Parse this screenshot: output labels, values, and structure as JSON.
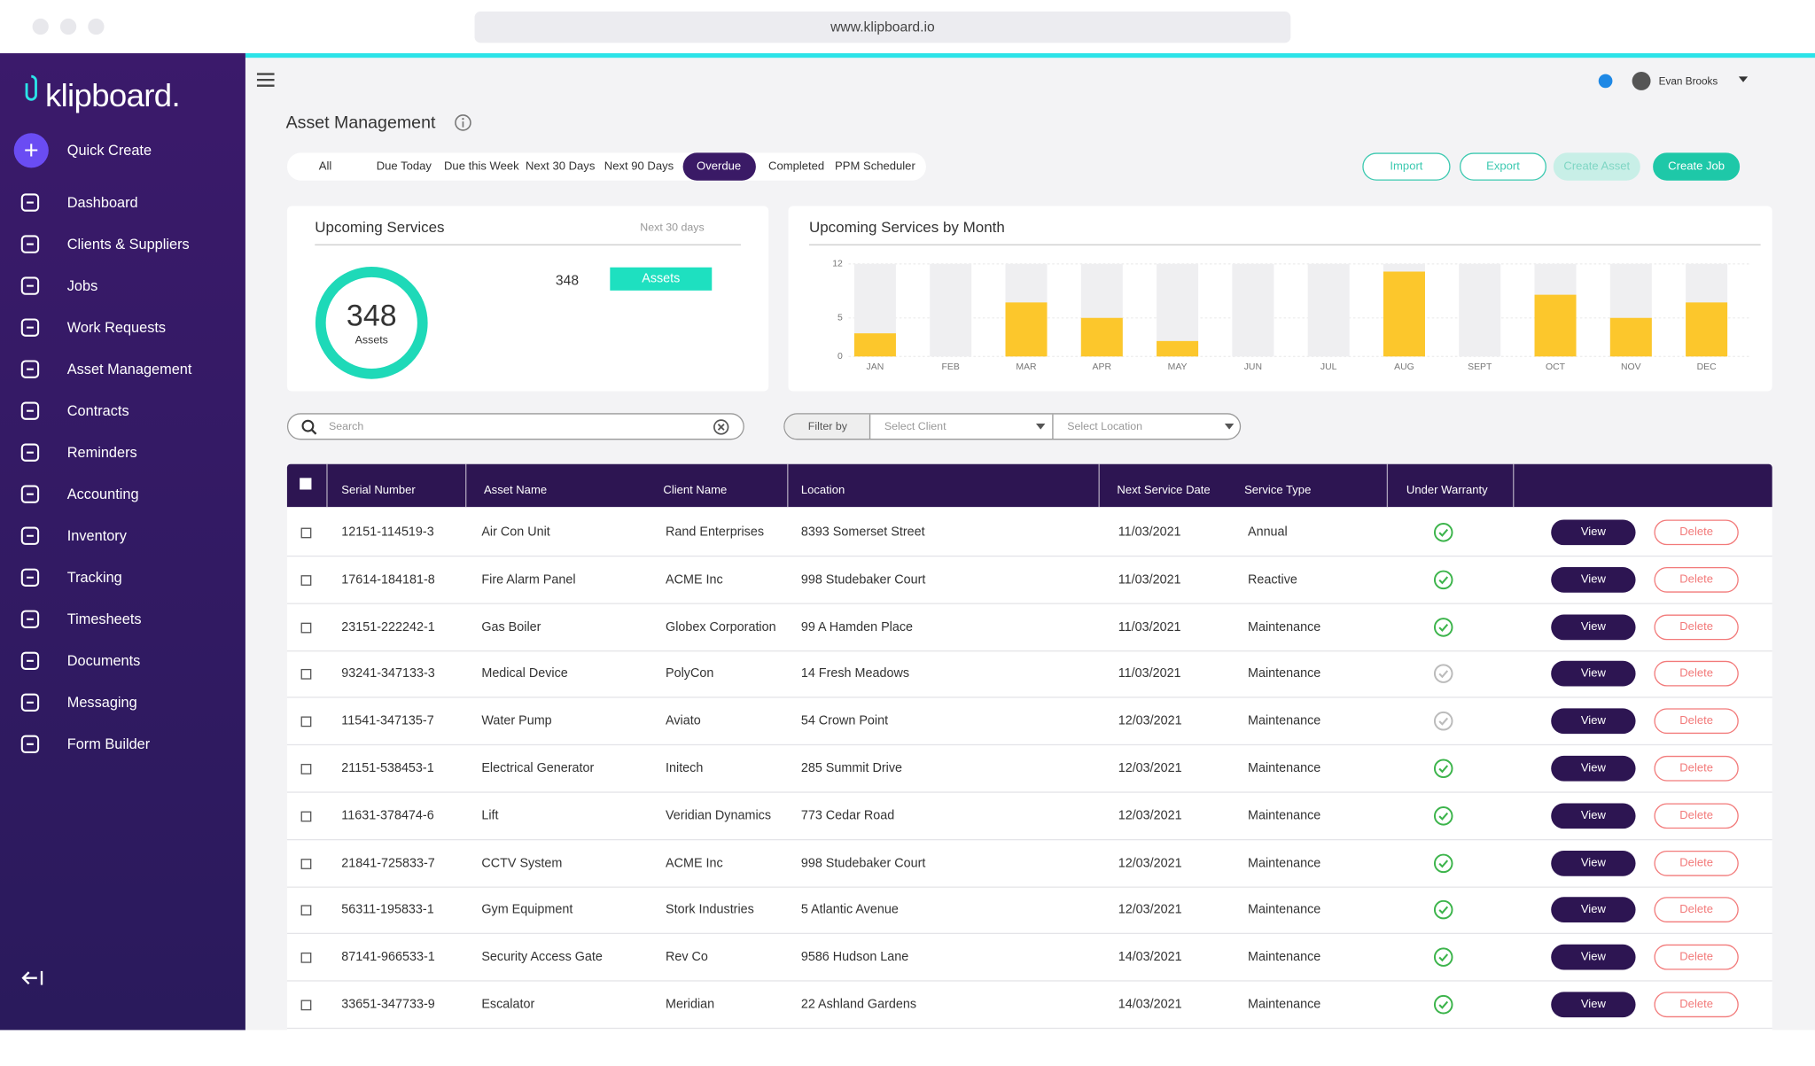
{
  "browser": {
    "url": "www.klipboard.io"
  },
  "sidebar": {
    "logo": "klipboard.",
    "quick_create": "Quick Create",
    "menu": [
      "Dashboard",
      "Clients & Suppliers",
      "Jobs",
      "Work Requests",
      "Asset Management",
      "Contracts",
      "Reminders",
      "Accounting",
      "Inventory",
      "Tracking",
      "Timesheets",
      "Documents",
      "Messaging",
      "Form Builder"
    ]
  },
  "topbar": {
    "user": "Evan Brooks"
  },
  "header": {
    "title": "Asset Management"
  },
  "tabs": {
    "items": [
      "All",
      "Due Today",
      "Due this Week",
      "Next 30 Days",
      "Next 90 Days",
      "Overdue",
      "Completed",
      "PPM Scheduler"
    ],
    "active": 5
  },
  "actions": [
    "Import",
    "Export",
    "Create Asset",
    "Create Job"
  ],
  "upcoming": {
    "title": "Upcoming Services",
    "period": "Next 30 days",
    "total": 348,
    "unit": "Assets"
  },
  "services_by_month": {
    "type": "bar",
    "title": "Upcoming Services by Month",
    "categories": [
      "JAN",
      "FEB",
      "MAR",
      "APR",
      "MAY",
      "JUN",
      "JUL",
      "AUG",
      "SEPT",
      "OCT",
      "NOV",
      "DEC"
    ],
    "values": [
      3,
      0,
      7,
      5,
      2,
      0,
      0,
      11,
      0,
      8,
      5,
      7
    ],
    "color": "#fcc72c",
    "ylim": [
      0,
      12
    ],
    "yticks": [
      0,
      5,
      12
    ]
  },
  "search": {
    "placeholder": "Search"
  },
  "filters": {
    "label": "Filter by",
    "client": "Select Client",
    "location": "Select Location"
  },
  "table": {
    "columns": [
      "Serial Number",
      "Asset Name",
      "Client Name",
      "Location",
      "Next Service Date",
      "Service Type",
      "Under Warranty"
    ],
    "rows": [
      [
        "12151-114519-3",
        "Air Con Unit",
        "Rand Enterprises",
        "8393 Somerset Street",
        "11/03/2021",
        "Annual"
      ],
      [
        "17614-184181-8",
        "Fire Alarm Panel",
        "ACME Inc",
        "998 Studebaker Court",
        "11/03/2021",
        "Reactive"
      ],
      [
        "23151-222242-1",
        "Gas Boiler",
        "Globex Corporation",
        "99 A Hamden Place",
        "11/03/2021",
        "Maintenance"
      ],
      [
        "93241-347133-3",
        "Medical Device",
        "PolyCon",
        "14 Fresh Meadows",
        "11/03/2021",
        "Maintenance"
      ],
      [
        "11541-347135-7",
        "Water Pump",
        "Aviato",
        "54 Crown Point",
        "12/03/2021",
        "Maintenance"
      ],
      [
        "21151-538453-1",
        "Electrical Generator",
        "Initech",
        "285 Summit Drive",
        "12/03/2021",
        "Maintenance"
      ],
      [
        "11631-378474-6",
        "Lift",
        "Veridian Dynamics",
        "773 Cedar Road",
        "12/03/2021",
        "Maintenance"
      ],
      [
        "21841-725833-7",
        "CCTV System",
        "ACME Inc",
        "998 Studebaker Court",
        "12/03/2021",
        "Maintenance"
      ],
      [
        "56311-195833-1",
        "Gym Equipment",
        "Stork Industries",
        "5 Atlantic Avenue",
        "12/03/2021",
        "Maintenance"
      ],
      [
        "87141-966533-1",
        "Security Access Gate",
        "Rev Co",
        "9586 Hudson Lane",
        "14/03/2021",
        "Maintenance"
      ],
      [
        "33651-347733-9",
        "Escalator",
        "Meridian",
        "22 Ashland Gardens",
        "14/03/2021",
        "Maintenance"
      ]
    ],
    "under_warranty": [
      true,
      true,
      true,
      false,
      false,
      true,
      true,
      true,
      true,
      true,
      true
    ],
    "view": "View",
    "delete": "Delete"
  }
}
